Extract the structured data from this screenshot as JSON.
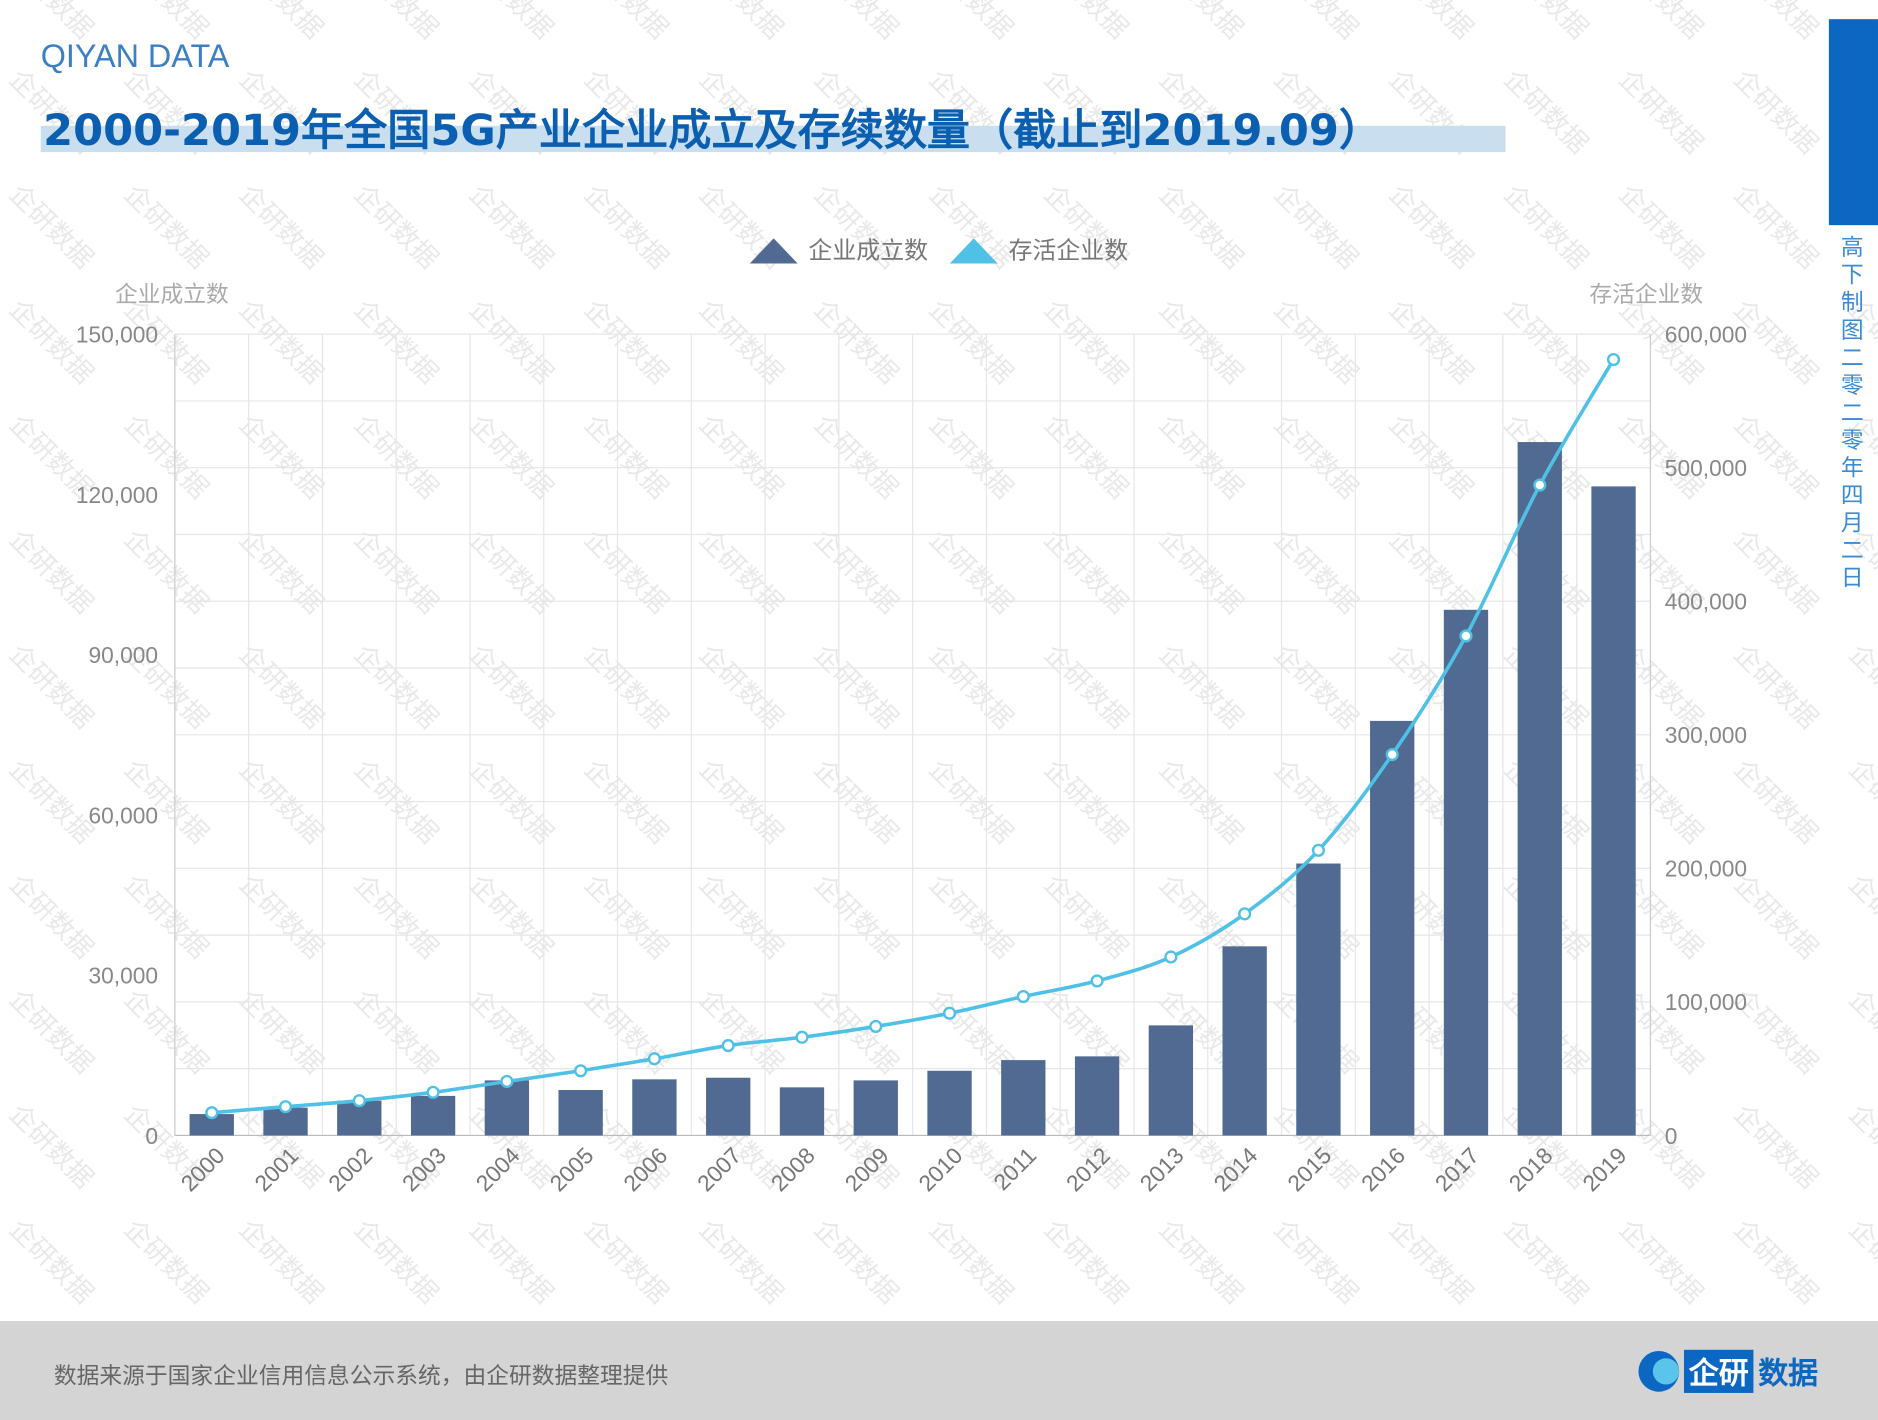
{
  "header": {
    "brand": "QIYAN DATA",
    "title": "2000-2019年全国5G产业企业成立及存续数量（截止到2019.09）"
  },
  "side_note": "高下制图 二零二零年四月二日",
  "footer": {
    "source": "数据来源于国家企业信用信息公示系统，由企研数据整理提供",
    "logo_a": "企研",
    "logo_b": "数据"
  },
  "watermark": "企研数据",
  "colors": {
    "bar": "#506a92",
    "line": "#4fc0e6",
    "title": "#0b5fb0"
  },
  "chart_data": {
    "type": "bar+line",
    "title": "2000-2019年全国5G产业企业成立及存续数量（截止到2019.09）",
    "legend_placement": "top-center",
    "categories": [
      "2000",
      "2001",
      "2002",
      "2003",
      "2004",
      "2005",
      "2006",
      "2007",
      "2008",
      "2009",
      "2010",
      "2011",
      "2012",
      "2013",
      "2014",
      "2015",
      "2016",
      "2017",
      "2018",
      "2019"
    ],
    "series": [
      {
        "name": "企业成立数",
        "type": "bar",
        "axis": "left",
        "values": [
          4000,
          5200,
          6500,
          7400,
          10300,
          8500,
          10500,
          10800,
          9000,
          10300,
          12100,
          14100,
          14800,
          20600,
          35400,
          50900,
          77600,
          98400,
          129800,
          121500
        ]
      },
      {
        "name": "存活企业数",
        "type": "line",
        "axis": "right",
        "values": [
          17000,
          21500,
          26000,
          32300,
          40400,
          48400,
          57400,
          67300,
          73500,
          81600,
          91500,
          104000,
          115700,
          133600,
          165900,
          213500,
          285200,
          374000,
          487000,
          581000
        ]
      }
    ],
    "ylabel": "企业成立数",
    "ylim": [
      0,
      150000
    ],
    "yticks": [
      "0",
      "30,000",
      "60,000",
      "90,000",
      "120,000",
      "150,000"
    ],
    "y2label": "存活企业数",
    "y2lim": [
      0,
      600000
    ],
    "y2ticks": [
      "0",
      "100,000",
      "200,000",
      "300,000",
      "400,000",
      "500,000",
      "600,000"
    ],
    "grid": true
  }
}
